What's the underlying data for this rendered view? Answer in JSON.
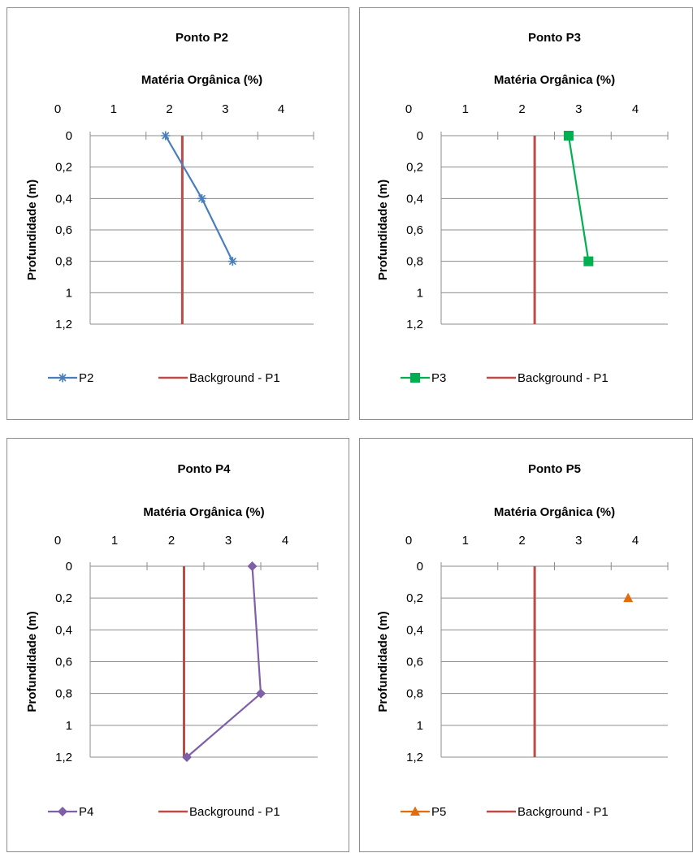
{
  "chart_data": [
    {
      "type": "line",
      "title": "Ponto P2",
      "xlabel": "Matéria Orgânica (%)",
      "ylabel": "Profundidade (m)",
      "xlim": [
        0,
        4
      ],
      "ylim": [
        0,
        1.2
      ],
      "y_inverted": true,
      "x_axis_position": "top",
      "x_ticks": [
        "0",
        "1",
        "2",
        "3",
        "4"
      ],
      "y_ticks": [
        "0",
        "0,2",
        "0,4",
        "0,6",
        "0,8",
        "1",
        "1,2"
      ],
      "grid": "horizontal",
      "legend_position": "bottom",
      "series": [
        {
          "name": "P2",
          "color": "#4a7ebb",
          "marker": "star",
          "x": [
            1.35,
            2.0,
            2.55
          ],
          "y": [
            0,
            0.4,
            0.8
          ]
        },
        {
          "name": "Background - P1",
          "color": "#be4b48",
          "marker": "none",
          "x": [
            1.65,
            1.65
          ],
          "y": [
            0,
            1.2
          ]
        }
      ]
    },
    {
      "type": "line",
      "title": "Ponto P3",
      "xlabel": "Matéria Orgânica (%)",
      "ylabel": "Profundidade (m)",
      "xlim": [
        0,
        4
      ],
      "ylim": [
        0,
        1.2
      ],
      "y_inverted": true,
      "x_axis_position": "top",
      "x_ticks": [
        "0",
        "1",
        "2",
        "3",
        "4"
      ],
      "y_ticks": [
        "0",
        "0,2",
        "0,4",
        "0,6",
        "0,8",
        "1",
        "1,2"
      ],
      "grid": "horizontal",
      "legend_position": "bottom",
      "series": [
        {
          "name": "P3",
          "color": "#00b050",
          "marker": "square",
          "x": [
            2.25,
            2.6
          ],
          "y": [
            0,
            0.8
          ]
        },
        {
          "name": "Background - P1",
          "color": "#be4b48",
          "marker": "none",
          "x": [
            1.65,
            1.65
          ],
          "y": [
            0,
            1.2
          ]
        }
      ]
    },
    {
      "type": "line",
      "title": "Ponto P4",
      "xlabel": "Matéria Orgânica (%)",
      "ylabel": "Profundidade (m)",
      "xlim": [
        0,
        4
      ],
      "ylim": [
        0,
        1.2
      ],
      "y_inverted": true,
      "x_axis_position": "top",
      "x_ticks": [
        "0",
        "1",
        "2",
        "3",
        "4"
      ],
      "y_ticks": [
        "0",
        "0,2",
        "0,4",
        "0,6",
        "0,8",
        "1",
        "1,2"
      ],
      "grid": "horizontal",
      "legend_position": "bottom",
      "series": [
        {
          "name": "P4",
          "color": "#7f5fa8",
          "marker": "diamond",
          "x": [
            2.85,
            3.0,
            1.7
          ],
          "y": [
            0,
            0.8,
            1.2
          ]
        },
        {
          "name": "Background - P1",
          "color": "#be4b48",
          "marker": "none",
          "x": [
            1.65,
            1.65
          ],
          "y": [
            0,
            1.2
          ]
        }
      ]
    },
    {
      "type": "scatter",
      "title": "Ponto P5",
      "xlabel": "Matéria Orgânica (%)",
      "ylabel": "Profundidade (m)",
      "xlim": [
        0,
        4
      ],
      "ylim": [
        0,
        1.2
      ],
      "y_inverted": true,
      "x_axis_position": "top",
      "x_ticks": [
        "0",
        "1",
        "2",
        "3",
        "4"
      ],
      "y_ticks": [
        "0",
        "0,2",
        "0,4",
        "0,6",
        "0,8",
        "1",
        "1,2"
      ],
      "grid": "horizontal",
      "legend_position": "bottom",
      "series": [
        {
          "name": "P5",
          "color": "#e46c0a",
          "marker": "triangle",
          "x": [
            3.3
          ],
          "y": [
            0.2
          ]
        },
        {
          "name": "Background - P1",
          "color": "#be4b48",
          "marker": "none",
          "x": [
            1.65,
            1.65
          ],
          "y": [
            0,
            1.2
          ]
        }
      ]
    }
  ]
}
